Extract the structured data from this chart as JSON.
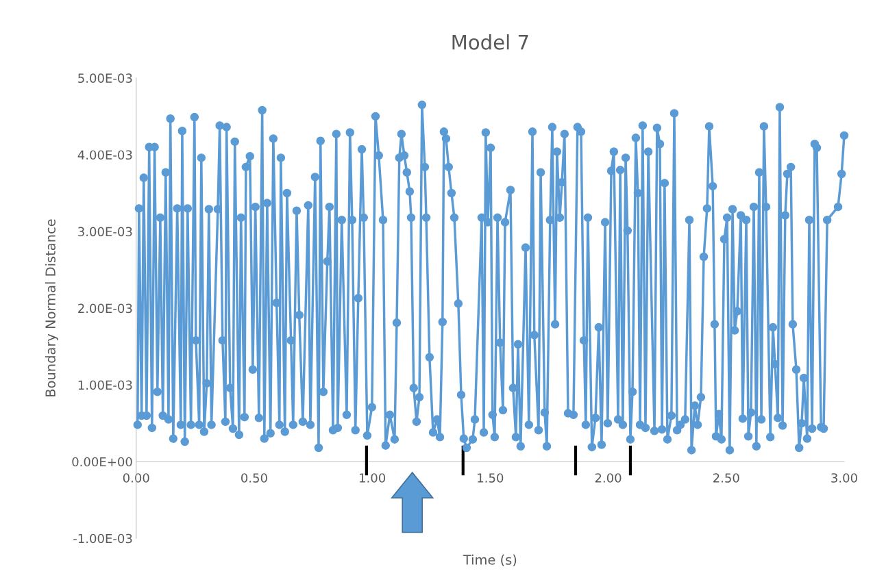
{
  "chart_data": {
    "type": "line",
    "title": "Model 7",
    "xlabel": "Time (s)",
    "ylabel": "Boundary Normal Distance",
    "xlim": [
      0,
      3
    ],
    "xticks": [
      {
        "value": 0,
        "label": "0.00"
      },
      {
        "value": 0.5,
        "label": "0.50"
      },
      {
        "value": 1,
        "label": "1.00"
      },
      {
        "value": 1.5,
        "label": "1.50"
      },
      {
        "value": 2,
        "label": "2.00"
      },
      {
        "value": 2.5,
        "label": "2.50"
      },
      {
        "value": 3,
        "label": "3.00"
      }
    ],
    "ylim": [
      -0.001,
      0.005
    ],
    "yticks": [
      {
        "value": -0.001,
        "label": "-1.00E-03"
      },
      {
        "value": 0,
        "label": "0.00E+00"
      },
      {
        "value": 0.001,
        "label": "1.00E-03"
      },
      {
        "value": 0.002,
        "label": "2.00E-03"
      },
      {
        "value": 0.003,
        "label": "3.00E-03"
      },
      {
        "value": 0.004,
        "label": "4.00E-03"
      },
      {
        "value": 0.005,
        "label": "5.00E-03"
      }
    ],
    "grid": false,
    "legend": false,
    "marker": "circle",
    "line_style": "solid",
    "series": [
      {
        "marker": "none",
        "color": "#000000",
        "x": [
          0.976,
          0.976
        ],
        "values": [
          -0.00016,
          0.00019
        ]
      },
      {
        "marker": "none",
        "color": "#000000",
        "x": [
          1.385,
          1.385
        ],
        "values": [
          -0.00016,
          0.00019
        ]
      },
      {
        "marker": "none",
        "color": "#000000",
        "x": [
          1.862,
          1.862
        ],
        "values": [
          -0.00016,
          0.00019
        ]
      },
      {
        "marker": "none",
        "color": "#000000",
        "x": [
          2.094,
          2.094
        ],
        "values": [
          -0.00016,
          0.00019
        ]
      },
      {
        "color": "#5b9bd5",
        "x": [
          0.006,
          0.012,
          0.023,
          0.032,
          0.044,
          0.055,
          0.067,
          0.078,
          0.09,
          0.102,
          0.113,
          0.125,
          0.137,
          0.145,
          0.157,
          0.174,
          0.189,
          0.195,
          0.206,
          0.218,
          0.232,
          0.247,
          0.253,
          0.267,
          0.276,
          0.288,
          0.299,
          0.308,
          0.319,
          0.346,
          0.354,
          0.366,
          0.378,
          0.383,
          0.398,
          0.41,
          0.418,
          0.436,
          0.444,
          0.459,
          0.465,
          0.482,
          0.494,
          0.505,
          0.52,
          0.534,
          0.543,
          0.555,
          0.569,
          0.581,
          0.595,
          0.607,
          0.613,
          0.63,
          0.639,
          0.656,
          0.665,
          0.68,
          0.691,
          0.706,
          0.729,
          0.738,
          0.758,
          0.773,
          0.781,
          0.793,
          0.81,
          0.819,
          0.834,
          0.848,
          0.854,
          0.871,
          0.892,
          0.906,
          0.915,
          0.929,
          0.941,
          0.956,
          0.964,
          0.979,
          0.999,
          1.014,
          1.028,
          1.046,
          1.057,
          1.075,
          1.095,
          1.104,
          1.115,
          1.124,
          1.136,
          1.147,
          1.159,
          1.165,
          1.176,
          1.188,
          1.2,
          1.211,
          1.223,
          1.229,
          1.243,
          1.258,
          1.275,
          1.287,
          1.298,
          1.304,
          1.313,
          1.324,
          1.336,
          1.348,
          1.365,
          1.377,
          1.388,
          1.4,
          1.426,
          1.435,
          1.464,
          1.473,
          1.481,
          1.49,
          1.502,
          1.51,
          1.519,
          1.531,
          1.542,
          1.554,
          1.563,
          1.586,
          1.597,
          1.609,
          1.618,
          1.629,
          1.65,
          1.664,
          1.679,
          1.687,
          1.705,
          1.714,
          1.731,
          1.74,
          1.754,
          1.763,
          1.775,
          1.783,
          1.795,
          1.804,
          1.815,
          1.83,
          1.853,
          1.87,
          1.885,
          1.897,
          1.905,
          1.914,
          1.931,
          1.946,
          1.96,
          1.972,
          1.987,
          1.998,
          2.013,
          2.024,
          2.042,
          2.051,
          2.062,
          2.074,
          2.082,
          2.094,
          2.103,
          2.117,
          2.126,
          2.135,
          2.146,
          2.158,
          2.17,
          2.196,
          2.207,
          2.219,
          2.228,
          2.239,
          2.251,
          2.268,
          2.28,
          2.292,
          2.306,
          2.326,
          2.344,
          2.353,
          2.367,
          2.379,
          2.393,
          2.405,
          2.419,
          2.428,
          2.443,
          2.451,
          2.457,
          2.469,
          2.48,
          2.492,
          2.504,
          2.515,
          2.527,
          2.536,
          2.547,
          2.562,
          2.57,
          2.585,
          2.594,
          2.605,
          2.617,
          2.628,
          2.64,
          2.649,
          2.66,
          2.669,
          2.687,
          2.698,
          2.707,
          2.719,
          2.727,
          2.739,
          2.75,
          2.759,
          2.774,
          2.782,
          2.797,
          2.809,
          2.82,
          2.829,
          2.843,
          2.852,
          2.864,
          2.875,
          2.884,
          2.902,
          2.913,
          2.928,
          2.974,
          2.989,
          3.0
        ],
        "values": [
          0.00048,
          0.0033,
          0.0006,
          0.0037,
          0.0006,
          0.0041,
          0.00044,
          0.0041,
          0.00091,
          0.00318,
          0.0006,
          0.00377,
          0.00055,
          0.00447,
          0.0003,
          0.0033,
          0.00048,
          0.00431,
          0.00026,
          0.0033,
          0.00048,
          0.00449,
          0.00158,
          0.00048,
          0.00396,
          0.00039,
          0.00102,
          0.00329,
          0.00048,
          0.00329,
          0.00438,
          0.00158,
          0.00052,
          0.00436,
          0.00096,
          0.00043,
          0.00417,
          0.00035,
          0.00318,
          0.00058,
          0.00384,
          0.00398,
          0.0012,
          0.00332,
          0.00057,
          0.00458,
          0.0003,
          0.00337,
          0.00037,
          0.00421,
          0.00207,
          0.00048,
          0.00396,
          0.00039,
          0.0035,
          0.00158,
          0.00048,
          0.00327,
          0.00191,
          0.00052,
          0.00334,
          0.00048,
          0.00371,
          0.00018,
          0.00418,
          0.00091,
          0.00261,
          0.00332,
          0.00041,
          0.00427,
          0.00044,
          0.00315,
          0.00061,
          0.00429,
          0.00315,
          0.00041,
          0.00213,
          0.00407,
          0.00318,
          0.00034,
          0.00071,
          0.0045,
          0.00399,
          0.00315,
          0.00021,
          0.00061,
          0.00029,
          0.00181,
          0.00396,
          0.00427,
          0.00399,
          0.00377,
          0.00352,
          0.00318,
          0.00096,
          0.00052,
          0.00084,
          0.00465,
          0.00384,
          0.00318,
          0.00136,
          0.00038,
          0.00055,
          0.00032,
          0.00182,
          0.0043,
          0.00421,
          0.00384,
          0.0035,
          0.00318,
          0.00206,
          0.00087,
          0.0003,
          0.00018,
          0.00029,
          0.00055,
          0.00318,
          0.00038,
          0.00429,
          0.00312,
          0.00409,
          0.00061,
          0.00032,
          0.00318,
          0.00155,
          0.00067,
          0.00312,
          0.00354,
          0.00096,
          0.00032,
          0.00153,
          0.0002,
          0.00279,
          0.00048,
          0.0043,
          0.00165,
          0.00041,
          0.00377,
          0.00064,
          0.0002,
          0.00315,
          0.00436,
          0.00179,
          0.00404,
          0.00318,
          0.00364,
          0.00427,
          0.00063,
          0.00061,
          0.00436,
          0.0043,
          0.00158,
          0.00048,
          0.00318,
          0.00019,
          0.00057,
          0.00175,
          0.00022,
          0.00312,
          0.0005,
          0.00379,
          0.00404,
          0.00055,
          0.0038,
          0.00048,
          0.00396,
          0.00301,
          0.00029,
          0.00091,
          0.00422,
          0.0035,
          0.00048,
          0.00438,
          0.00044,
          0.00404,
          0.0004,
          0.00435,
          0.00414,
          0.00042,
          0.00363,
          0.00029,
          0.0006,
          0.00454,
          0.00041,
          0.00048,
          0.00055,
          0.00315,
          0.00015,
          0.00073,
          0.00048,
          0.00084,
          0.00267,
          0.0033,
          0.00437,
          0.00359,
          0.00179,
          0.00033,
          0.00062,
          0.00029,
          0.0029,
          0.00318,
          0.00015,
          0.00329,
          0.00171,
          0.00196,
          0.00321,
          0.00056,
          0.00315,
          0.00033,
          0.00064,
          0.00332,
          0.0002,
          0.00377,
          0.00055,
          0.00437,
          0.00332,
          0.00032,
          0.00175,
          0.00127,
          0.00057,
          0.00462,
          0.00047,
          0.00321,
          0.00375,
          0.00384,
          0.00179,
          0.0012,
          0.00018,
          0.0005,
          0.00109,
          0.0003,
          0.00315,
          0.00043,
          0.00414,
          0.00409,
          0.00045,
          0.00043,
          0.00315,
          0.00332,
          0.00375,
          0.00425
        ]
      }
    ]
  }
}
